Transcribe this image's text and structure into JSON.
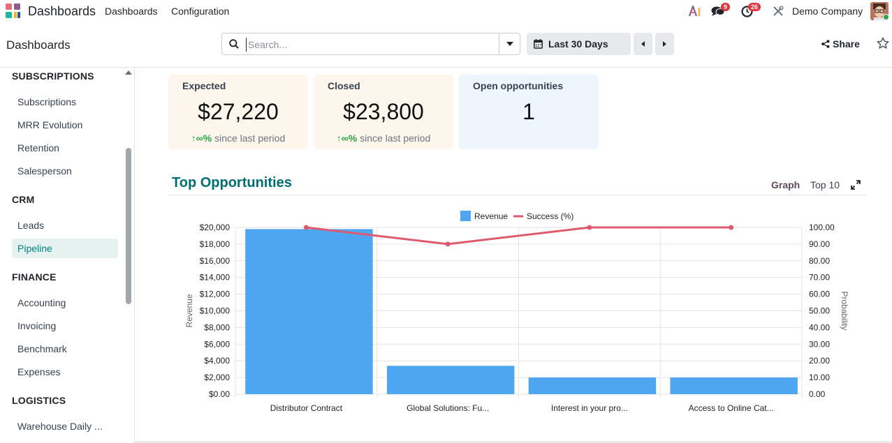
{
  "navbar": {
    "brand": "Dashboards",
    "menu": [
      "Dashboards",
      "Configuration"
    ],
    "chat_badge": "9",
    "activity_badge": "26",
    "company": "Demo Company"
  },
  "control_panel": {
    "title": "Dashboards",
    "search_placeholder": "Search...",
    "period_label": "Last 30 Days",
    "share_label": "Share"
  },
  "sidebar": {
    "sections": [
      {
        "title": "SUBSCRIPTIONS",
        "items": [
          "Subscriptions",
          "MRR Evolution",
          "Retention",
          "Salesperson"
        ]
      },
      {
        "title": "CRM",
        "items": [
          "Leads",
          "Pipeline"
        ]
      },
      {
        "title": "FINANCE",
        "items": [
          "Accounting",
          "Invoicing",
          "Benchmark",
          "Expenses"
        ]
      },
      {
        "title": "LOGISTICS",
        "items": [
          "Warehouse Daily ..."
        ]
      }
    ],
    "active_item": "Pipeline"
  },
  "kpis": [
    {
      "title": "Expected",
      "value": "$27,220",
      "trend_icon": "↑∞%",
      "trend_text": " since last period",
      "bg": "#fdf6ec"
    },
    {
      "title": "Closed",
      "value": "$23,800",
      "trend_icon": "↑∞%",
      "trend_text": " since last period",
      "bg": "#fdf6ec"
    },
    {
      "title": "Open opportunities",
      "value": "1",
      "trend_icon": "",
      "trend_text": "",
      "bg": "#eef5fd"
    }
  ],
  "section": {
    "title": "Top Opportunities",
    "tab_graph": "Graph",
    "tab_top": "Top 10"
  },
  "chart_data": {
    "type": "bar",
    "categories": [
      "Distributor Contract",
      "Global Solutions: Fu...",
      "Interest in your pro...",
      "Access to Online Cat..."
    ],
    "series": [
      {
        "name": "Revenue",
        "type": "bar",
        "axis": "left",
        "color": "#4ea5f0",
        "values": [
          19800,
          3400,
          2000,
          2000
        ]
      },
      {
        "name": "Success (%)",
        "type": "line",
        "axis": "right",
        "color": "#e05a6e",
        "values": [
          100,
          90,
          100,
          100
        ]
      }
    ],
    "ylabel": "Revenue",
    "y2label": "Probability",
    "ylim": [
      0,
      20000
    ],
    "y2lim": [
      0,
      100
    ],
    "yticks": [
      "$0.00",
      "$2,000",
      "$4,000",
      "$6,000",
      "$8,000",
      "$10,000",
      "$12,000",
      "$14,000",
      "$16,000",
      "$18,000",
      "$20,000"
    ],
    "y2ticks": [
      "0.00",
      "10.00",
      "20.00",
      "30.00",
      "40.00",
      "50.00",
      "60.00",
      "70.00",
      "80.00",
      "90.00",
      "100.00"
    ],
    "legend_position": "top-center",
    "grid": true
  }
}
